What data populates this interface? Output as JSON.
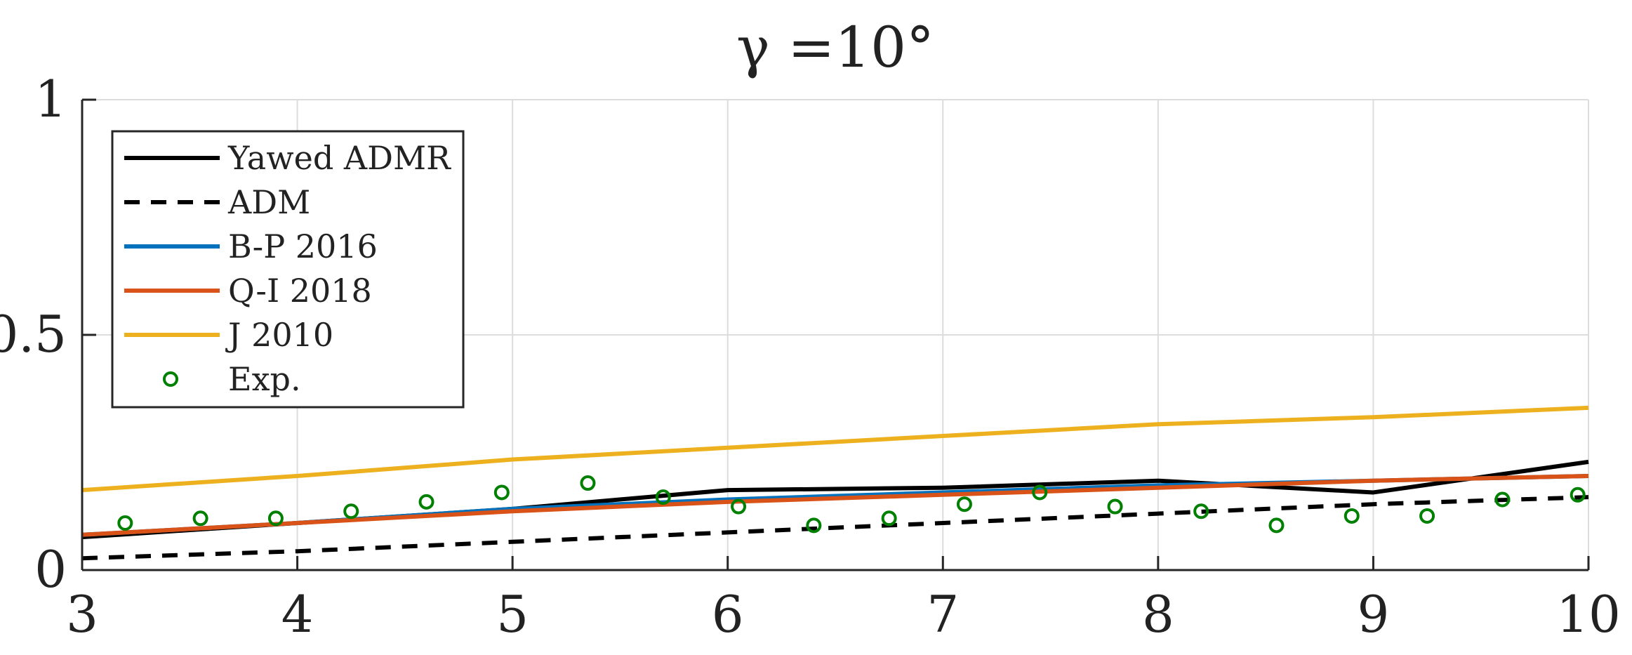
{
  "chart_data": {
    "type": "line",
    "title": "γ =10°",
    "xlabel": "",
    "ylabel": "",
    "xlim": [
      3,
      10
    ],
    "ylim": [
      0,
      1
    ],
    "xticks": [
      3,
      4,
      5,
      6,
      7,
      8,
      9,
      10
    ],
    "xtick_labels": [
      "3",
      "4",
      "5",
      "6",
      "7",
      "8",
      "9",
      "10"
    ],
    "yticks": [
      0,
      0.5,
      1
    ],
    "ytick_labels": [
      "0",
      "0.5",
      "1"
    ],
    "grid": true,
    "legend_position": "top-left",
    "series": [
      {
        "name": "Yawed ADMR",
        "style": "solid",
        "color": "#000000",
        "x": [
          3,
          4,
          5,
          6,
          7,
          8,
          9,
          10
        ],
        "y": [
          0.07,
          0.1,
          0.13,
          0.17,
          0.175,
          0.19,
          0.165,
          0.23
        ]
      },
      {
        "name": "ADM",
        "style": "dashed",
        "color": "#000000",
        "x": [
          3,
          4,
          5,
          6,
          7,
          8,
          9,
          10
        ],
        "y": [
          0.025,
          0.04,
          0.06,
          0.08,
          0.1,
          0.12,
          0.14,
          0.155
        ]
      },
      {
        "name": "B-P 2016",
        "style": "solid",
        "color": "#0072bd",
        "x": [
          3,
          4,
          5,
          6,
          7,
          8,
          9,
          10
        ],
        "y": [
          0.075,
          0.1,
          0.13,
          0.15,
          0.165,
          0.18,
          0.19,
          0.2
        ]
      },
      {
        "name": "Q-I 2018",
        "style": "solid",
        "color": "#d95319",
        "x": [
          3,
          4,
          5,
          6,
          7,
          8,
          9,
          10
        ],
        "y": [
          0.075,
          0.1,
          0.125,
          0.145,
          0.16,
          0.175,
          0.19,
          0.2
        ]
      },
      {
        "name": "J 2010",
        "style": "solid",
        "color": "#edb120",
        "x": [
          3,
          4,
          5,
          6,
          7,
          8,
          9,
          10
        ],
        "y": [
          0.17,
          0.2,
          0.235,
          0.26,
          0.285,
          0.31,
          0.325,
          0.345
        ]
      },
      {
        "name": "Exp.",
        "style": "markers",
        "color": "#008000",
        "x": [
          3.2,
          3.55,
          3.9,
          4.25,
          4.6,
          4.95,
          5.35,
          5.7,
          6.05,
          6.4,
          6.75,
          7.1,
          7.45,
          7.8,
          8.2,
          8.55,
          8.9,
          9.25,
          9.6,
          9.95
        ],
        "y": [
          0.1,
          0.11,
          0.11,
          0.125,
          0.145,
          0.165,
          0.185,
          0.155,
          0.135,
          0.095,
          0.11,
          0.14,
          0.165,
          0.135,
          0.125,
          0.095,
          0.115,
          0.115,
          0.15,
          0.16
        ]
      }
    ]
  }
}
